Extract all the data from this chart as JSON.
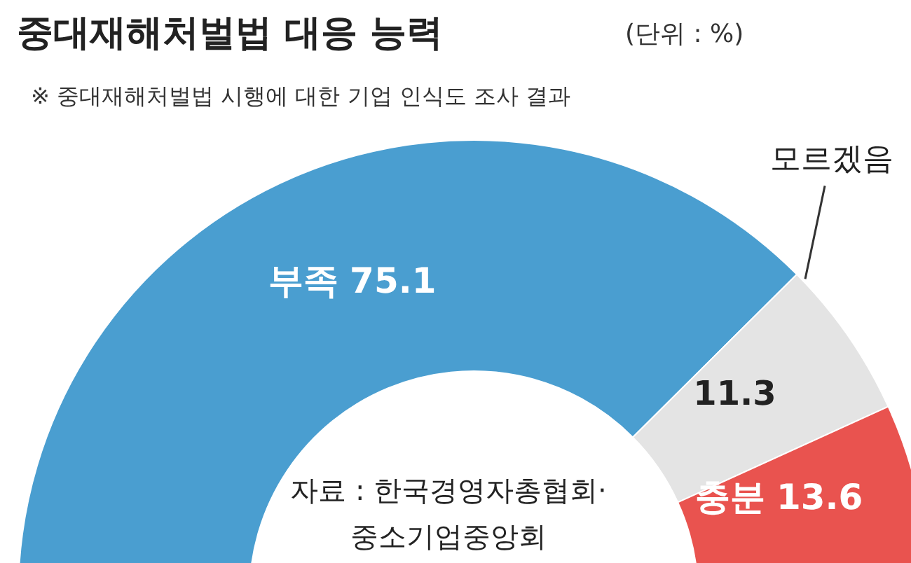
{
  "chart_data": {
    "type": "donut",
    "title": "중대재해처벌법 대응 능력",
    "subtitle": "※ 중대재해처벌법 시행에 대한 기업 인식도 조사 결과",
    "annotations": [
      "(단위 : %)",
      "자료 : 한국경영자총협회·\n중소기업중앙회"
    ],
    "categories": [
      "부족",
      "모르겠음",
      "충분"
    ],
    "values": [
      75.1,
      11.3,
      13.6
    ],
    "colors": [
      "#4a9ed0",
      "#e4e4e4",
      "#e9534f"
    ],
    "data_labels": true
  }
}
